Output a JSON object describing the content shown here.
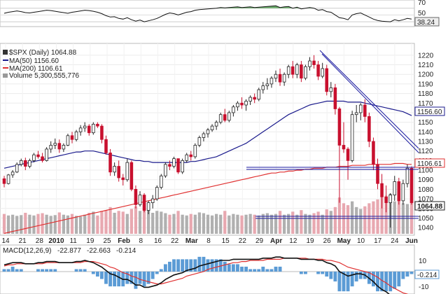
{
  "chart_data": {
    "type": "candlestick",
    "symbol_label": "$SPX (Daily) 1064.88",
    "ma50_label": "MA(50) 1156.60",
    "ma200_label": "MA(200) 1106.61",
    "volume_label": "Volume 5,300,555,776",
    "macd_label": "MACD(12,26,9)",
    "macd_values": [
      "-22.877",
      "-22.663",
      "-0.214"
    ],
    "current_price_tag": "1064.88",
    "ma50_tag": "1156.60",
    "ma200_tag": "1106.61",
    "rsi_tag": "38.24",
    "macd_tag": "-0.214",
    "colors": {
      "up": "#ffffff",
      "down": "#c8102e",
      "ma50": "#1a1a8c",
      "ma200": "#e03030",
      "trend": "#1a1aa0",
      "volume_up": "#b0b0b0",
      "volume_down": "#e8a8b0",
      "macd_hist": "#5b9bd5",
      "rsi_fill": "#4a9a4a"
    },
    "y_ticks": [
      1220,
      1210,
      1200,
      1190,
      1180,
      1170,
      1160,
      1150,
      1140,
      1130,
      1120,
      1110,
      1100,
      1090,
      1080,
      1070,
      1060,
      1050,
      1040
    ],
    "ylim": [
      1035,
      1225
    ],
    "rsi_ticks": [
      "70",
      "50",
      "30"
    ],
    "macd_ticks": [
      "10",
      "0",
      "-10"
    ],
    "x_labels": [
      "14",
      "21",
      "28",
      "2010",
      "11",
      "19",
      "25",
      "Feb",
      "8",
      "16",
      "22",
      "Mar",
      "8",
      "15",
      "22",
      "29",
      "Apr",
      "12",
      "19",
      "26",
      "May",
      "10",
      "17",
      "24",
      "Jun"
    ],
    "ohlc": [
      [
        1091,
        1094,
        1082,
        1086
      ],
      [
        1086,
        1096,
        1085,
        1095
      ],
      [
        1095,
        1100,
        1092,
        1098
      ],
      [
        1098,
        1108,
        1097,
        1106
      ],
      [
        1106,
        1112,
        1104,
        1110
      ],
      [
        1110,
        1113,
        1100,
        1104
      ],
      [
        1104,
        1112,
        1102,
        1110
      ],
      [
        1110,
        1118,
        1108,
        1116
      ],
      [
        1116,
        1120,
        1112,
        1114
      ],
      [
        1114,
        1118,
        1108,
        1110
      ],
      [
        1110,
        1124,
        1109,
        1122
      ],
      [
        1122,
        1130,
        1118,
        1126
      ],
      [
        1126,
        1133,
        1122,
        1128
      ],
      [
        1128,
        1132,
        1118,
        1122
      ],
      [
        1122,
        1128,
        1119,
        1126
      ],
      [
        1126,
        1138,
        1125,
        1136
      ],
      [
        1136,
        1140,
        1128,
        1132
      ],
      [
        1132,
        1142,
        1130,
        1140
      ],
      [
        1140,
        1147,
        1136,
        1144
      ],
      [
        1144,
        1150,
        1140,
        1146
      ],
      [
        1146,
        1148,
        1136,
        1139
      ],
      [
        1139,
        1150,
        1137,
        1148
      ],
      [
        1148,
        1150,
        1144,
        1146
      ],
      [
        1146,
        1148,
        1128,
        1132
      ],
      [
        1132,
        1136,
        1116,
        1118
      ],
      [
        1118,
        1122,
        1094,
        1098
      ],
      [
        1098,
        1108,
        1094,
        1104
      ],
      [
        1104,
        1110,
        1088,
        1092
      ],
      [
        1092,
        1096,
        1084,
        1090
      ],
      [
        1090,
        1112,
        1088,
        1108
      ],
      [
        1108,
        1110,
        1078,
        1080
      ],
      [
        1080,
        1084,
        1060,
        1064
      ],
      [
        1064,
        1078,
        1062,
        1074
      ],
      [
        1074,
        1076,
        1056,
        1058
      ],
      [
        1058,
        1068,
        1054,
        1066
      ],
      [
        1066,
        1074,
        1060,
        1070
      ],
      [
        1070,
        1084,
        1068,
        1082
      ],
      [
        1082,
        1096,
        1080,
        1094
      ],
      [
        1094,
        1108,
        1092,
        1106
      ],
      [
        1106,
        1110,
        1100,
        1104
      ],
      [
        1104,
        1114,
        1102,
        1112
      ],
      [
        1112,
        1112,
        1096,
        1098
      ],
      [
        1098,
        1112,
        1096,
        1110
      ],
      [
        1110,
        1118,
        1108,
        1116
      ],
      [
        1116,
        1120,
        1110,
        1114
      ],
      [
        1114,
        1128,
        1112,
        1126
      ],
      [
        1126,
        1136,
        1124,
        1134
      ],
      [
        1134,
        1140,
        1130,
        1138
      ],
      [
        1138,
        1144,
        1134,
        1142
      ],
      [
        1142,
        1148,
        1140,
        1146
      ],
      [
        1146,
        1152,
        1142,
        1150
      ],
      [
        1150,
        1160,
        1148,
        1158
      ],
      [
        1158,
        1164,
        1150,
        1152
      ],
      [
        1152,
        1162,
        1150,
        1160
      ],
      [
        1160,
        1168,
        1156,
        1166
      ],
      [
        1166,
        1172,
        1162,
        1170
      ],
      [
        1170,
        1176,
        1164,
        1168
      ],
      [
        1168,
        1174,
        1162,
        1172
      ],
      [
        1172,
        1178,
        1168,
        1176
      ],
      [
        1176,
        1180,
        1170,
        1174
      ],
      [
        1174,
        1186,
        1172,
        1184
      ],
      [
        1184,
        1192,
        1180,
        1188
      ],
      [
        1188,
        1196,
        1184,
        1190
      ],
      [
        1190,
        1198,
        1186,
        1196
      ],
      [
        1196,
        1204,
        1192,
        1200
      ],
      [
        1200,
        1206,
        1188,
        1192
      ],
      [
        1192,
        1202,
        1188,
        1200
      ],
      [
        1200,
        1210,
        1196,
        1208
      ],
      [
        1208,
        1214,
        1196,
        1200
      ],
      [
        1200,
        1212,
        1196,
        1210
      ],
      [
        1210,
        1214,
        1192,
        1196
      ],
      [
        1196,
        1210,
        1194,
        1208
      ],
      [
        1208,
        1218,
        1204,
        1214
      ],
      [
        1214,
        1220,
        1206,
        1210
      ],
      [
        1210,
        1214,
        1194,
        1198
      ],
      [
        1198,
        1212,
        1196,
        1206
      ],
      [
        1206,
        1210,
        1178,
        1182
      ],
      [
        1182,
        1192,
        1176,
        1186
      ],
      [
        1186,
        1190,
        1158,
        1164
      ],
      [
        1164,
        1166,
        1066,
        1126
      ],
      [
        1126,
        1150,
        1118,
        1122
      ],
      [
        1122,
        1124,
        1090,
        1110
      ],
      [
        1110,
        1162,
        1108,
        1158
      ],
      [
        1158,
        1168,
        1150,
        1160
      ],
      [
        1160,
        1170,
        1152,
        1168
      ],
      [
        1168,
        1174,
        1150,
        1156
      ],
      [
        1156,
        1160,
        1124,
        1130
      ],
      [
        1130,
        1134,
        1100,
        1106
      ],
      [
        1106,
        1112,
        1080,
        1086
      ],
      [
        1086,
        1096,
        1060,
        1072
      ],
      [
        1072,
        1084,
        1056,
        1066
      ],
      [
        1066,
        1076,
        1040,
        1074
      ],
      [
        1074,
        1094,
        1068,
        1088
      ],
      [
        1088,
        1092,
        1064,
        1068
      ],
      [
        1068,
        1090,
        1064,
        1086
      ],
      [
        1086,
        1106,
        1082,
        1102
      ],
      [
        1102,
        1104,
        1064,
        1066
      ]
    ],
    "volume": [
      52,
      48,
      50,
      47,
      49,
      55,
      50,
      48,
      52,
      54,
      50,
      47,
      49,
      56,
      50,
      48,
      52,
      47,
      45,
      50,
      55,
      58,
      48,
      60,
      62,
      70,
      55,
      60,
      58,
      52,
      65,
      72,
      60,
      68,
      64,
      55,
      60,
      58,
      54,
      50,
      52,
      60,
      50,
      48,
      52,
      50,
      56,
      54,
      50,
      48,
      52,
      50,
      60,
      48,
      52,
      50,
      48,
      50,
      52,
      50,
      48,
      52,
      54,
      50,
      52,
      60,
      50,
      52,
      58,
      50,
      62,
      52,
      50,
      54,
      58,
      50,
      64,
      60,
      70,
      95,
      80,
      75,
      85,
      70,
      65,
      72,
      80,
      85,
      90,
      95,
      100,
      105,
      85,
      92,
      80,
      78,
      90
    ],
    "ma50": [
      1102,
      1103,
      1104,
      1105,
      1106,
      1107,
      1108,
      1109,
      1110,
      1111,
      1112,
      1113,
      1114,
      1115,
      1116,
      1117,
      1118,
      1119,
      1119,
      1120,
      1120,
      1120,
      1119,
      1118,
      1117,
      1116,
      1115,
      1114,
      1113,
      1112,
      1111,
      1110,
      1110,
      1109,
      1109,
      1108,
      1108,
      1108,
      1108,
      1108,
      1108,
      1108,
      1108,
      1108,
      1109,
      1109,
      1110,
      1111,
      1112,
      1113,
      1114,
      1116,
      1118,
      1120,
      1122,
      1124,
      1126,
      1128,
      1131,
      1134,
      1137,
      1140,
      1143,
      1146,
      1149,
      1152,
      1155,
      1158,
      1160,
      1162,
      1164,
      1166,
      1168,
      1169,
      1170,
      1171,
      1172,
      1172,
      1172,
      1172,
      1172,
      1171,
      1171,
      1171,
      1171,
      1170,
      1169,
      1168,
      1167,
      1166,
      1165,
      1164,
      1163,
      1162,
      1161,
      1159,
      1157
    ],
    "ma200": [
      1034,
      1035,
      1036,
      1037,
      1038,
      1039,
      1040,
      1041,
      1042,
      1043,
      1044,
      1045,
      1046,
      1047,
      1048,
      1049,
      1050,
      1051,
      1052,
      1053,
      1054,
      1055,
      1056,
      1057,
      1058,
      1059,
      1060,
      1061,
      1062,
      1063,
      1064,
      1065,
      1066,
      1067,
      1068,
      1069,
      1070,
      1071,
      1072,
      1073,
      1074,
      1075,
      1076,
      1077,
      1078,
      1079,
      1080,
      1081,
      1082,
      1083,
      1084,
      1085,
      1086,
      1087,
      1088,
      1089,
      1090,
      1091,
      1092,
      1093,
      1094,
      1095,
      1096,
      1097,
      1097,
      1098,
      1098,
      1099,
      1099,
      1100,
      1100,
      1101,
      1101,
      1102,
      1102,
      1102,
      1103,
      1103,
      1103,
      1104,
      1104,
      1104,
      1105,
      1105,
      1105,
      1105,
      1106,
      1106,
      1106,
      1106,
      1106,
      1106,
      1107,
      1107,
      1107,
      1106,
      1106
    ],
    "rsi": [
      55,
      58,
      60,
      62,
      60,
      57,
      56,
      58,
      60,
      62,
      64,
      63,
      61,
      59,
      57,
      55,
      58,
      60,
      62,
      64,
      63,
      61,
      58,
      54,
      48,
      44,
      45,
      40,
      38,
      42,
      36,
      32,
      35,
      30,
      33,
      36,
      40,
      46,
      52,
      56,
      54,
      50,
      54,
      58,
      60,
      64,
      66,
      67,
      68,
      69,
      70,
      72,
      71,
      72,
      73,
      74,
      72,
      73,
      74,
      72,
      73,
      74,
      75,
      76,
      77,
      72,
      74,
      75,
      70,
      73,
      68,
      70,
      72,
      70,
      64,
      66,
      60,
      58,
      50,
      42,
      40,
      36,
      50,
      54,
      56,
      50,
      44,
      38,
      34,
      32,
      31,
      30,
      36,
      33,
      36,
      40,
      38
    ],
    "macd": [
      6,
      7,
      8,
      8,
      8,
      7,
      7,
      7,
      8,
      8,
      9,
      9,
      9,
      8,
      8,
      8,
      8,
      9,
      9,
      10,
      9,
      8,
      6,
      4,
      1,
      -2,
      -3,
      -5,
      -7,
      -7,
      -9,
      -12,
      -12,
      -14,
      -14,
      -13,
      -12,
      -10,
      -7,
      -5,
      -3,
      -2,
      -1,
      1,
      2,
      3,
      5,
      6,
      7,
      8,
      9,
      10,
      10,
      10,
      11,
      11,
      11,
      11,
      11,
      11,
      11,
      12,
      12,
      12,
      13,
      13,
      12,
      12,
      12,
      12,
      11,
      11,
      11,
      11,
      10,
      10,
      8,
      7,
      5,
      0,
      -2,
      -4,
      -3,
      -2,
      -2,
      -3,
      -6,
      -9,
      -13,
      -16,
      -18,
      -21,
      -22,
      -23,
      -22,
      -22,
      -23
    ],
    "macd_signal": [
      5,
      6,
      6,
      7,
      7,
      7,
      7,
      7,
      7,
      7,
      8,
      8,
      8,
      8,
      8,
      8,
      8,
      8,
      8,
      9,
      9,
      9,
      8,
      7,
      6,
      4,
      3,
      1,
      -1,
      -2,
      -4,
      -5,
      -7,
      -8,
      -9,
      -10,
      -11,
      -11,
      -10,
      -9,
      -8,
      -7,
      -6,
      -4,
      -3,
      -2,
      -1,
      0,
      2,
      3,
      4,
      5,
      6,
      7,
      8,
      8,
      9,
      9,
      10,
      10,
      10,
      10,
      11,
      11,
      11,
      11,
      12,
      12,
      12,
      12,
      12,
      12,
      11,
      11,
      11,
      11,
      10,
      10,
      9,
      8,
      6,
      4,
      3,
      2,
      1,
      0,
      -1,
      -3,
      -5,
      -8,
      -10,
      -13,
      -15,
      -17,
      -19,
      -20,
      -22
    ]
  }
}
